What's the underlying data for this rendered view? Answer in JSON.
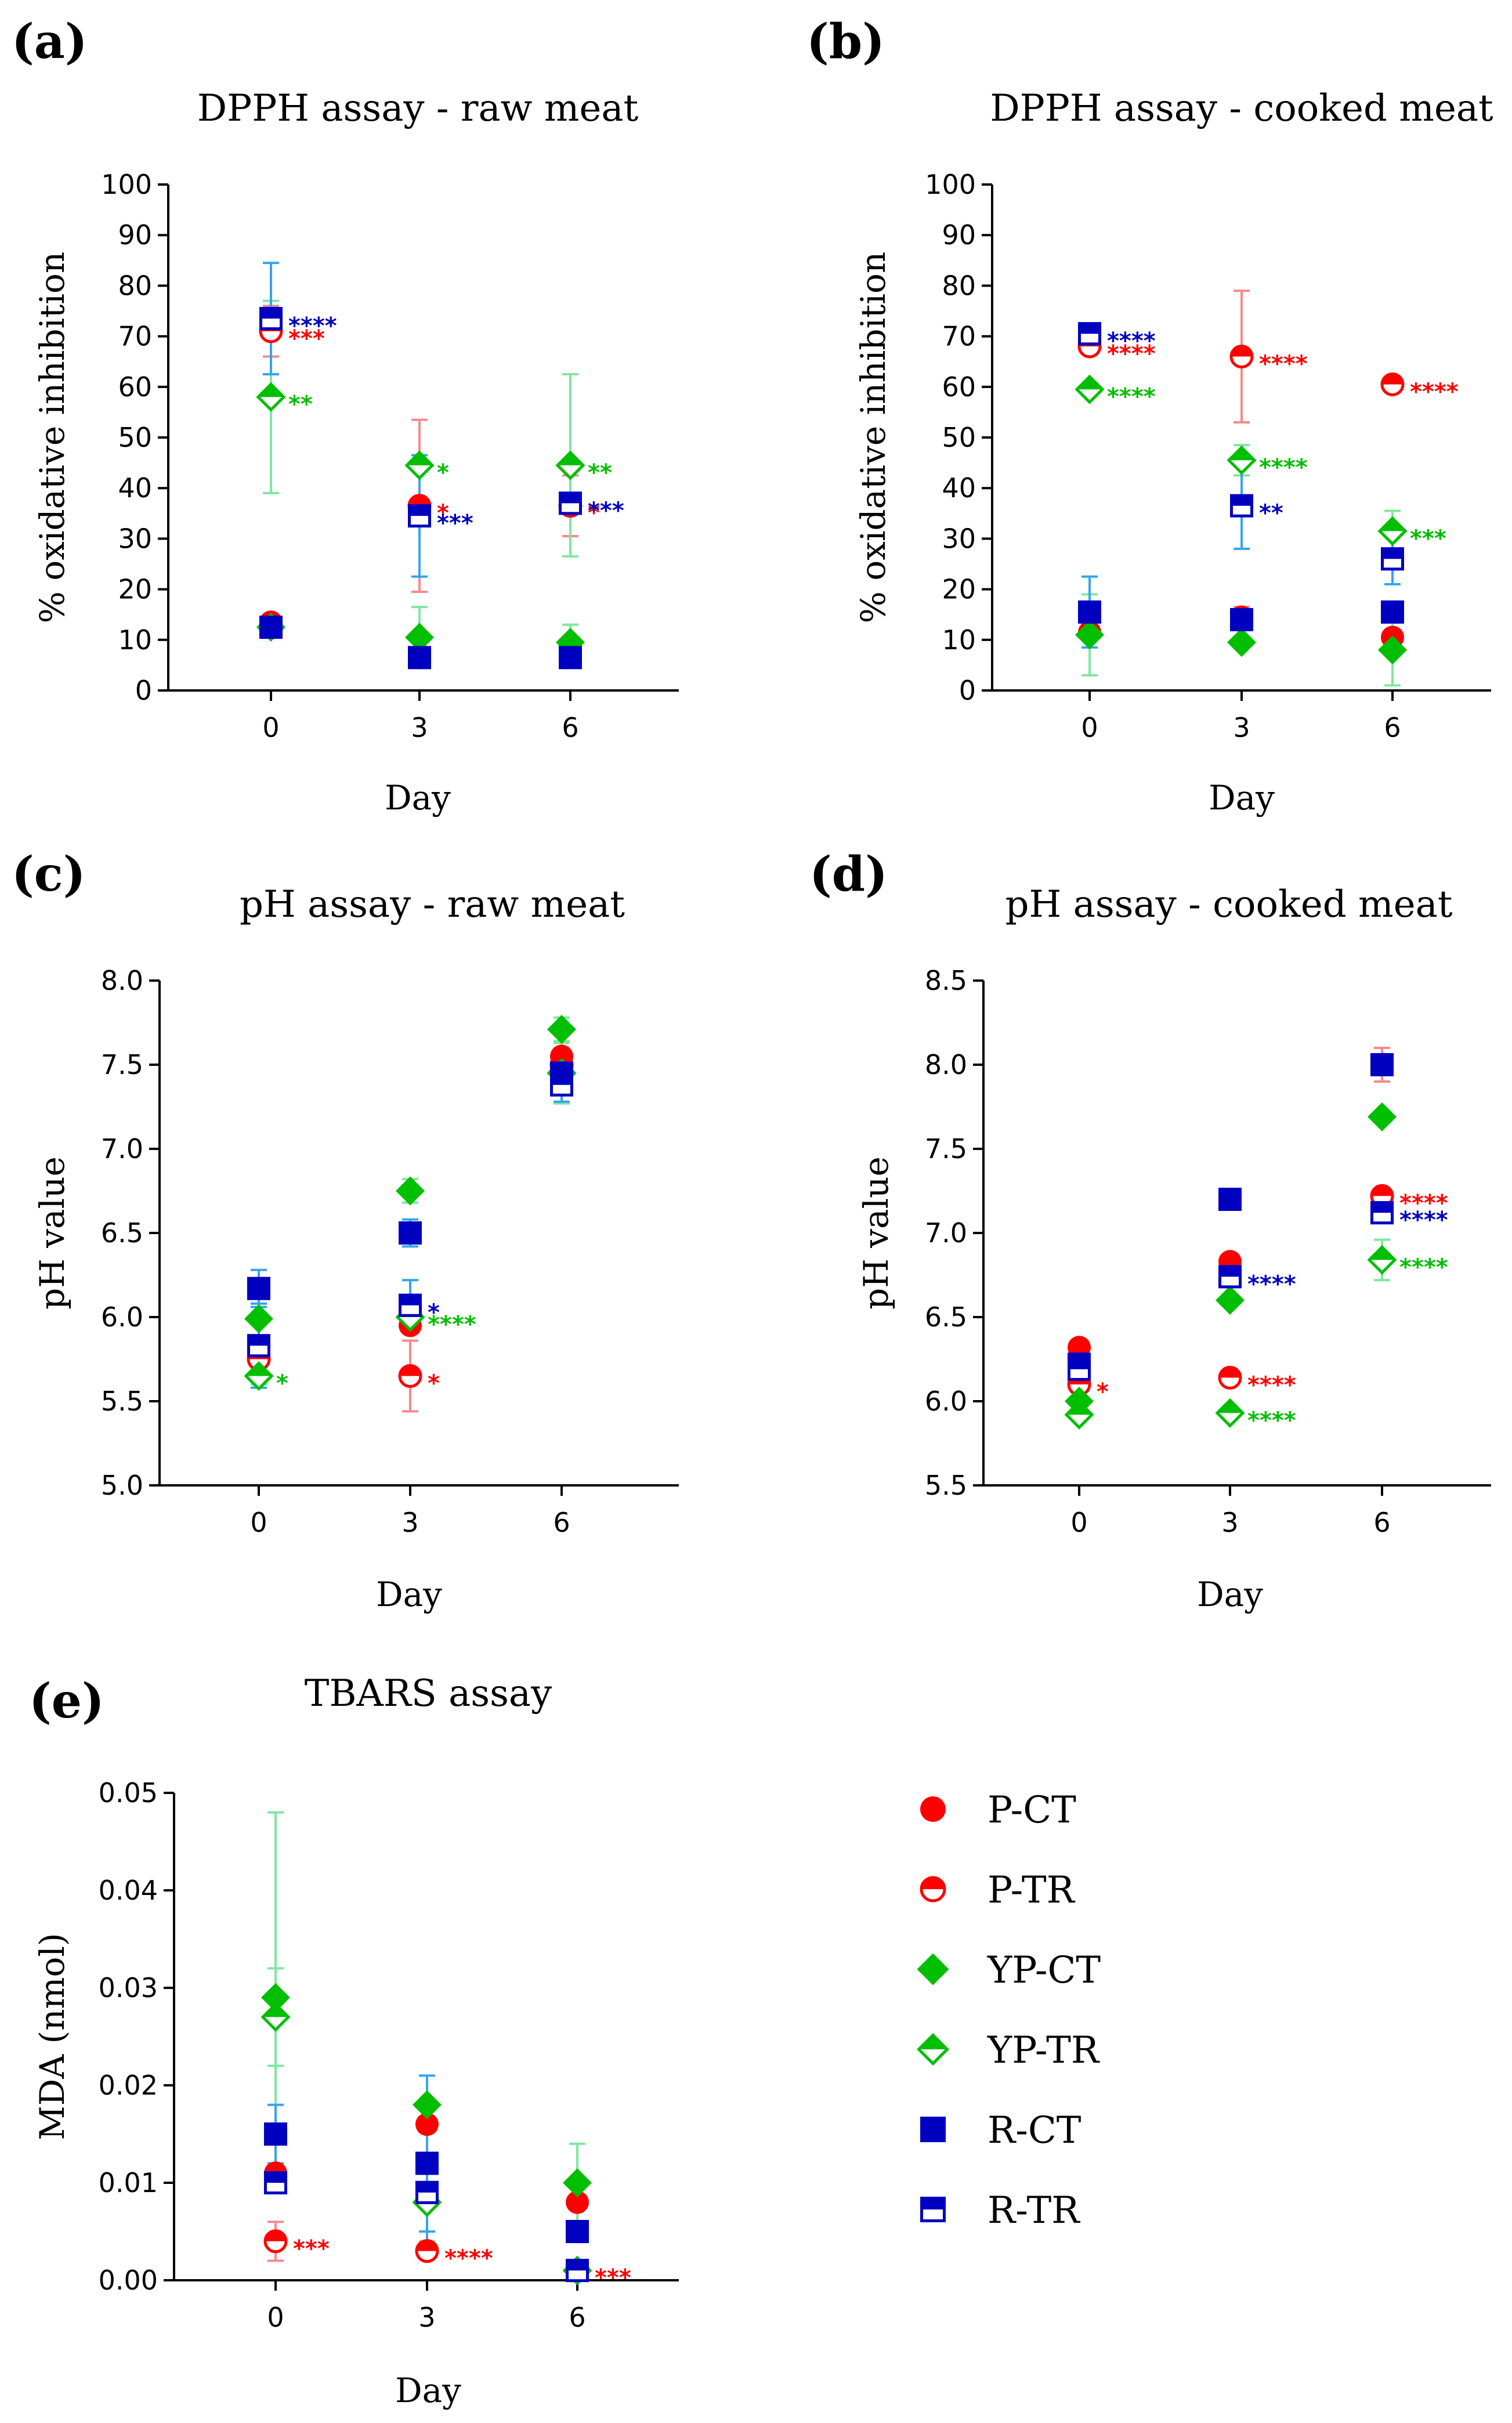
{
  "colors": {
    "P": "#ff0000",
    "YP": "#00bf00",
    "R": "#0000c0",
    "P_err": "#f58a8a",
    "YP_err": "#7fe7a0",
    "R_err": "#35a3f0"
  },
  "legend": [
    {
      "label": "P-CT",
      "group": "P",
      "fill": "full",
      "marker": "circle"
    },
    {
      "label": "P-TR",
      "group": "P",
      "fill": "half",
      "marker": "circle"
    },
    {
      "label": "YP-CT",
      "group": "YP",
      "fill": "full",
      "marker": "diamond"
    },
    {
      "label": "YP-TR",
      "group": "YP",
      "fill": "half",
      "marker": "diamond"
    },
    {
      "label": "R-CT",
      "group": "R",
      "fill": "full",
      "marker": "square"
    },
    {
      "label": "R-TR",
      "group": "R",
      "fill": "half",
      "marker": "square"
    }
  ],
  "chart_data": [
    {
      "id": "a",
      "panel_label": "(a)",
      "type": "scatter",
      "title": "DPPH assay - raw meat",
      "xlabel": "Day",
      "ylabel": "% oxidative inhibition",
      "categories": [
        "0",
        "3",
        "6"
      ],
      "ylim": [
        0,
        100
      ],
      "yticks": [
        0,
        10,
        20,
        30,
        40,
        50,
        60,
        70,
        80,
        90,
        100
      ],
      "ytick_labels": [
        "0",
        "10",
        "20",
        "30",
        "40",
        "50",
        "60",
        "70",
        "80",
        "90",
        "100"
      ],
      "series": [
        {
          "name": "P-CT",
          "values": [
            13.5,
            6.5,
            8.5
          ],
          "errors": [
            0,
            0,
            0
          ],
          "sig": [
            "",
            "",
            ""
          ]
        },
        {
          "name": "P-TR",
          "values": [
            71,
            36.5,
            36.5
          ],
          "errors": [
            5,
            17,
            6
          ],
          "sig": [
            "***",
            "*",
            "*"
          ]
        },
        {
          "name": "YP-CT",
          "values": [
            12.5,
            10.5,
            9.5
          ],
          "errors": [
            0,
            6,
            3.5
          ],
          "sig": [
            "",
            "",
            ""
          ]
        },
        {
          "name": "YP-TR",
          "values": [
            58,
            44.5,
            44.5
          ],
          "errors": [
            19,
            0,
            18
          ],
          "sig": [
            "**",
            "*",
            "**"
          ]
        },
        {
          "name": "R-CT",
          "values": [
            12.5,
            6.5,
            6.5
          ],
          "errors": [
            2,
            0,
            0
          ],
          "sig": [
            "",
            "",
            ""
          ]
        },
        {
          "name": "R-TR",
          "values": [
            73.5,
            34.5,
            37
          ],
          "errors": [
            11,
            12,
            0
          ],
          "sig": [
            "****",
            "***",
            "***"
          ]
        }
      ]
    },
    {
      "id": "b",
      "panel_label": "(b)",
      "type": "scatter",
      "title": "DPPH assay - cooked meat",
      "xlabel": "Day",
      "ylabel": "% oxidative inhibition",
      "categories": [
        "0",
        "3",
        "6"
      ],
      "ylim": [
        0,
        100
      ],
      "yticks": [
        0,
        10,
        20,
        30,
        40,
        50,
        60,
        70,
        80,
        90,
        100
      ],
      "ytick_labels": [
        "0",
        "10",
        "20",
        "30",
        "40",
        "50",
        "60",
        "70",
        "80",
        "90",
        "100"
      ],
      "series": [
        {
          "name": "P-CT",
          "values": [
            11.5,
            14.5,
            10.5
          ],
          "errors": [
            0,
            2,
            0
          ],
          "sig": [
            "",
            "",
            ""
          ]
        },
        {
          "name": "P-TR",
          "values": [
            68,
            66,
            60.5
          ],
          "errors": [
            0,
            13,
            0
          ],
          "sig": [
            "****",
            "****",
            "****"
          ]
        },
        {
          "name": "YP-CT",
          "values": [
            11,
            9.5,
            8
          ],
          "errors": [
            8,
            0,
            7
          ],
          "sig": [
            "",
            "",
            ""
          ]
        },
        {
          "name": "YP-TR",
          "values": [
            59.5,
            45.5,
            31.5
          ],
          "errors": [
            0,
            3,
            4
          ],
          "sig": [
            "****",
            "****",
            "***"
          ]
        },
        {
          "name": "R-CT",
          "values": [
            15.5,
            14,
            15.5
          ],
          "errors": [
            7,
            0,
            0
          ],
          "sig": [
            "",
            "",
            ""
          ]
        },
        {
          "name": "R-TR",
          "values": [
            70.5,
            36.5,
            26
          ],
          "errors": [
            0,
            8.5,
            5
          ],
          "sig": [
            "****",
            "**",
            ""
          ]
        }
      ]
    },
    {
      "id": "c",
      "panel_label": "(c)",
      "type": "scatter",
      "title": "pH assay - raw meat",
      "xlabel": "Day",
      "ylabel": "pH value",
      "categories": [
        "0",
        "3",
        "6"
      ],
      "ylim": [
        5.0,
        8.0
      ],
      "yticks": [
        5.0,
        5.5,
        6.0,
        6.5,
        7.0,
        7.5,
        8.0
      ],
      "ytick_labels": [
        "5.0",
        "5.5",
        "6.0",
        "6.5",
        "7.0",
        "7.5",
        "8.0"
      ],
      "series": [
        {
          "name": "P-CT",
          "values": [
            5.75,
            5.95,
            7.55
          ],
          "errors": [
            0,
            0,
            0.08
          ],
          "sig": [
            "",
            "",
            ""
          ]
        },
        {
          "name": "P-TR",
          "values": [
            5.75,
            5.65,
            7.5
          ],
          "errors": [
            0.05,
            0.21,
            0.06
          ],
          "sig": [
            "",
            "*",
            ""
          ]
        },
        {
          "name": "YP-CT",
          "values": [
            5.99,
            6.75,
            7.71
          ],
          "errors": [
            0,
            0.07,
            0.07
          ],
          "sig": [
            "",
            "",
            ""
          ]
        },
        {
          "name": "YP-TR",
          "values": [
            5.65,
            6.0,
            7.45
          ],
          "errors": [
            0.05,
            0.05,
            0.18
          ],
          "sig": [
            "*",
            "****",
            ""
          ]
        },
        {
          "name": "R-CT",
          "values": [
            6.17,
            6.5,
            7.45
          ],
          "errors": [
            0.11,
            0.08,
            0.08
          ],
          "sig": [
            "",
            "",
            ""
          ]
        },
        {
          "name": "R-TR",
          "values": [
            5.83,
            6.07,
            7.38
          ],
          "errors": [
            0.25,
            0.15,
            0.1
          ],
          "sig": [
            "",
            "*",
            ""
          ]
        }
      ]
    },
    {
      "id": "d",
      "panel_label": "(d)",
      "type": "scatter",
      "title": "pH assay - cooked meat",
      "xlabel": "Day",
      "ylabel": "pH value",
      "categories": [
        "0",
        "3",
        "6"
      ],
      "ylim": [
        5.5,
        8.5
      ],
      "yticks": [
        5.5,
        6.0,
        6.5,
        7.0,
        7.5,
        8.0,
        8.5
      ],
      "ytick_labels": [
        "5.5",
        "6.0",
        "6.5",
        "7.0",
        "7.5",
        "8.0",
        "8.5"
      ],
      "series": [
        {
          "name": "P-CT",
          "values": [
            6.32,
            6.83,
            8.0
          ],
          "errors": [
            0,
            0,
            0.1
          ],
          "sig": [
            "",
            "",
            ""
          ]
        },
        {
          "name": "P-TR",
          "values": [
            6.1,
            6.14,
            7.22
          ],
          "errors": [
            0,
            0,
            0
          ],
          "sig": [
            "*",
            "****",
            "****"
          ]
        },
        {
          "name": "YP-CT",
          "values": [
            6.0,
            6.6,
            7.69
          ],
          "errors": [
            0,
            0,
            0
          ],
          "sig": [
            "",
            "",
            ""
          ]
        },
        {
          "name": "YP-TR",
          "values": [
            5.92,
            5.93,
            6.84
          ],
          "errors": [
            0,
            0,
            0.12
          ],
          "sig": [
            "",
            "****",
            "****"
          ]
        },
        {
          "name": "R-CT",
          "values": [
            6.22,
            7.2,
            8.0
          ],
          "errors": [
            0,
            0.04,
            0.03
          ],
          "sig": [
            "",
            "",
            ""
          ]
        },
        {
          "name": "R-TR",
          "values": [
            6.19,
            6.74,
            7.12
          ],
          "errors": [
            0,
            0,
            0
          ],
          "sig": [
            "",
            "****",
            "****"
          ]
        }
      ]
    },
    {
      "id": "e",
      "panel_label": "(e)",
      "type": "scatter",
      "title": "TBARS assay",
      "xlabel": "Day",
      "ylabel": "MDA (nmol)",
      "categories": [
        "0",
        "3",
        "6"
      ],
      "ylim": [
        0,
        0.05
      ],
      "yticks": [
        0,
        0.01,
        0.02,
        0.03,
        0.04,
        0.05
      ],
      "ytick_labels": [
        "0.00",
        "0.01",
        "0.02",
        "0.03",
        "0.04",
        "0.05"
      ],
      "series": [
        {
          "name": "P-CT",
          "values": [
            0.011,
            0.016,
            0.008
          ],
          "errors": [
            0,
            0,
            0
          ],
          "sig": [
            "",
            "",
            ""
          ]
        },
        {
          "name": "P-TR",
          "values": [
            0.004,
            0.003,
            0.001
          ],
          "errors": [
            0.002,
            0,
            0
          ],
          "sig": [
            "***",
            "****",
            "***"
          ]
        },
        {
          "name": "YP-CT",
          "values": [
            0.029,
            0.018,
            0.01
          ],
          "errors": [
            0.019,
            0,
            0.004
          ],
          "sig": [
            "",
            "",
            ""
          ]
        },
        {
          "name": "YP-TR",
          "values": [
            0.027,
            0.008,
            0.001
          ],
          "errors": [
            0.005,
            0.004,
            0
          ],
          "sig": [
            "",
            "",
            ""
          ]
        },
        {
          "name": "R-CT",
          "values": [
            0.015,
            0.012,
            0.005
          ],
          "errors": [
            0.003,
            0.009,
            0.001
          ],
          "sig": [
            "",
            "",
            ""
          ]
        },
        {
          "name": "R-TR",
          "values": [
            0.01,
            0.009,
            0.001
          ],
          "errors": [
            0.001,
            0.004,
            0
          ],
          "sig": [
            "",
            "",
            ""
          ]
        }
      ]
    }
  ]
}
